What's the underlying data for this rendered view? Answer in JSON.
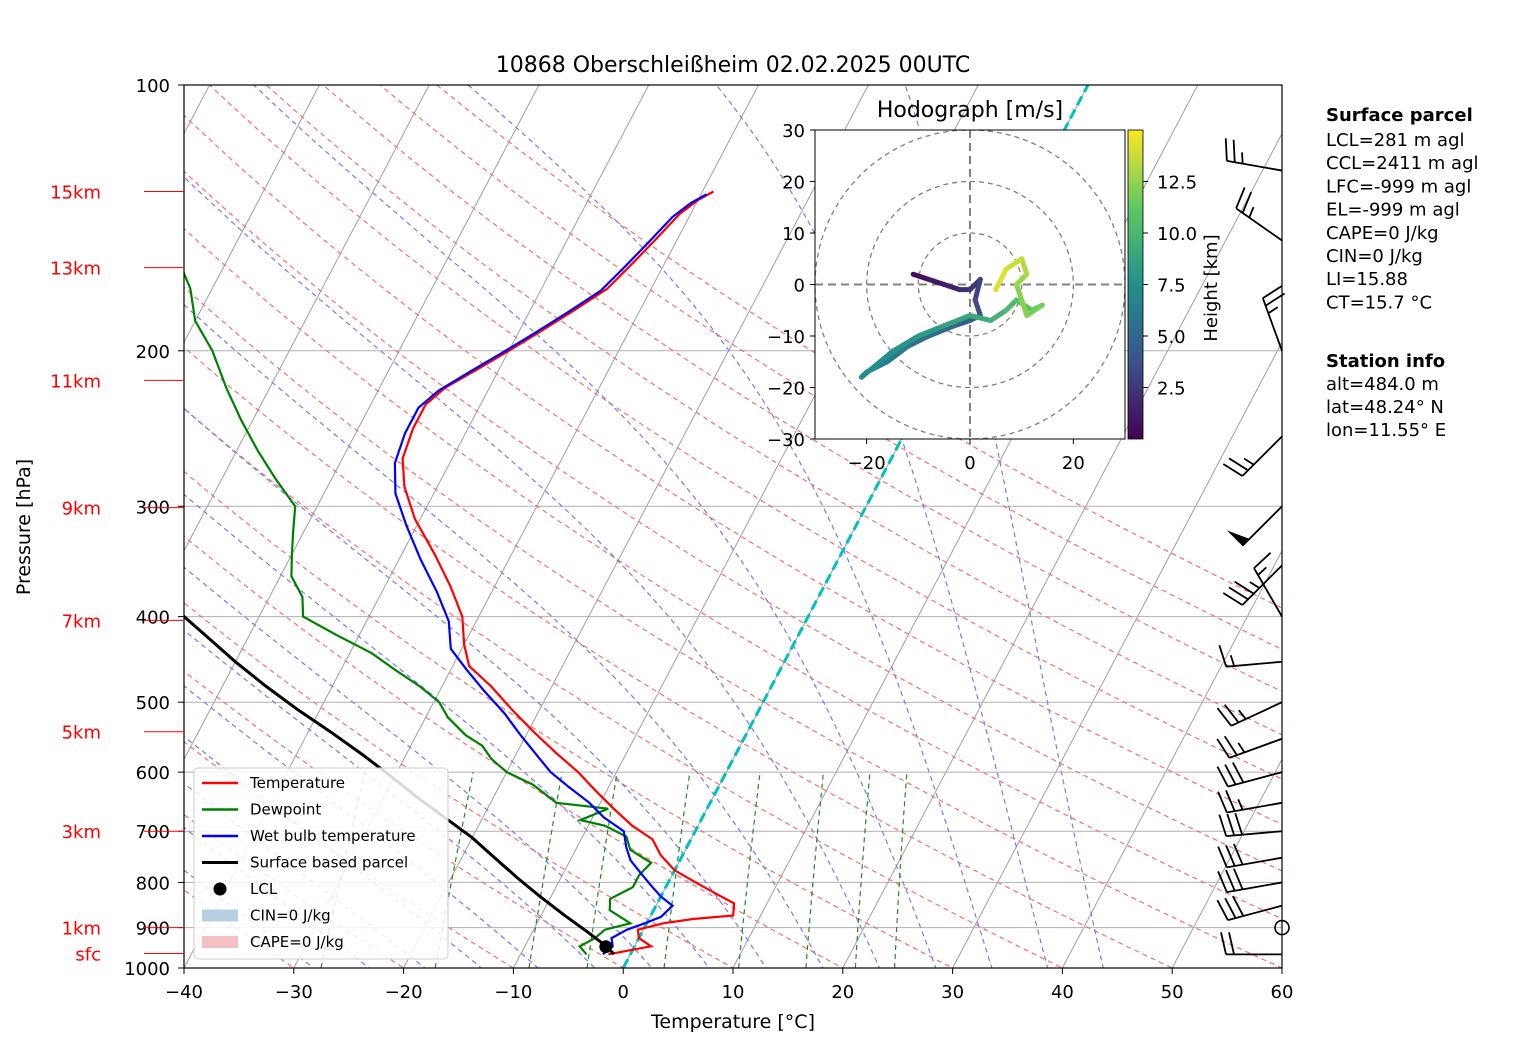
{
  "title": "10868 Oberschleißheim 02.02.2025 00UTC",
  "xlabel": "Temperature [°C]",
  "ylabel": "Pressure [hPa]",
  "chart_data": [
    {
      "type": "line",
      "subtype": "skew-T log-p diagram",
      "title": "10868 Oberschleißheim 02.02.2025 00UTC",
      "xlabel": "Temperature [°C]",
      "ylabel": "Pressure [hPa]",
      "xlim": [
        -40,
        60
      ],
      "ylim": [
        1000,
        100
      ],
      "y_scale": "log",
      "x_ticks": [
        "−40",
        "−30",
        "−20",
        "−10",
        "0",
        "10",
        "20",
        "30",
        "40",
        "50",
        "60"
      ],
      "y_ticks": [
        "100",
        "200",
        "300",
        "400",
        "500",
        "600",
        "700",
        "800",
        "900",
        "1000"
      ],
      "height_labels": [
        {
          "label": "15km",
          "p": 132
        },
        {
          "label": "13km",
          "p": 161
        },
        {
          "label": "11km",
          "p": 216
        },
        {
          "label": "9km",
          "p": 301
        },
        {
          "label": "7km",
          "p": 404
        },
        {
          "label": "5km",
          "p": 540
        },
        {
          "label": "3km",
          "p": 700
        },
        {
          "label": "1km",
          "p": 900
        },
        {
          "label": "sfc",
          "p": 963
        }
      ],
      "legend": {
        "position": "bottom-left",
        "entries": [
          "Temperature",
          "Dewpoint",
          "Wet bulb temperature",
          "Surface based parcel",
          "LCL",
          "CIN=0 J/kg",
          "CAPE=0 J/kg"
        ]
      },
      "series": [
        {
          "name": "Temperature",
          "color": "#ff0000",
          "points": [
            [
              -2,
              965
            ],
            [
              1.5,
              945
            ],
            [
              0,
              925
            ],
            [
              -0.5,
              905
            ],
            [
              1.5,
              890
            ],
            [
              4,
              880
            ],
            [
              7.5,
              872
            ],
            [
              7,
              845
            ],
            [
              5,
              825
            ],
            [
              2.5,
              800
            ],
            [
              0,
              775
            ],
            [
              -2,
              745
            ],
            [
              -3.5,
              715
            ],
            [
              -6,
              690
            ],
            [
              -8.5,
              660
            ],
            [
              -11,
              630
            ],
            [
              -13.5,
              600
            ],
            [
              -16.5,
              570
            ],
            [
              -19.5,
              540
            ],
            [
              -22.5,
              510
            ],
            [
              -25.5,
              480
            ],
            [
              -28.5,
              455
            ],
            [
              -30,
              430
            ],
            [
              -31.5,
              400
            ],
            [
              -34,
              370
            ],
            [
              -37,
              340
            ],
            [
              -40.5,
              310
            ],
            [
              -43,
              285
            ],
            [
              -44.5,
              265
            ],
            [
              -45,
              245
            ],
            [
              -45,
              230
            ],
            [
              -44,
              220
            ],
            [
              -42,
              210
            ],
            [
              -40,
              200
            ],
            [
              -38,
              190
            ],
            [
              -36,
              180
            ],
            [
              -34,
              170
            ],
            [
              -33,
              160
            ],
            [
              -32,
              150
            ],
            [
              -31,
              140
            ],
            [
              -30,
              135
            ],
            [
              -29,
              132
            ]
          ]
        },
        {
          "name": "Dewpoint",
          "color": "#008000",
          "points": [
            [
              -4,
              965
            ],
            [
              -5,
              945
            ],
            [
              -4,
              925
            ],
            [
              -3.5,
              905
            ],
            [
              -1.5,
              890
            ],
            [
              -4,
              860
            ],
            [
              -4.5,
              835
            ],
            [
              -3,
              810
            ],
            [
              -3,
              785
            ],
            [
              -2.5,
              760
            ],
            [
              -5,
              735
            ],
            [
              -6,
              710
            ],
            [
              -8.5,
              690
            ],
            [
              -11,
              680
            ],
            [
              -9,
              660
            ],
            [
              -14,
              650
            ],
            [
              -17,
              620
            ],
            [
              -20,
              600
            ],
            [
              -22,
              580
            ],
            [
              -23.5,
              560
            ],
            [
              -25.5,
              545
            ],
            [
              -28,
              520
            ],
            [
              -29.5,
              500
            ],
            [
              -32,
              480
            ],
            [
              -35,
              460
            ],
            [
              -38,
              440
            ],
            [
              -42,
              420
            ],
            [
              -46,
              400
            ],
            [
              -47,
              380
            ],
            [
              -49,
              360
            ],
            [
              -50,
              340
            ],
            [
              -51,
              320
            ],
            [
              -52,
              300
            ],
            [
              -55,
              280
            ],
            [
              -58,
              260
            ],
            [
              -61,
              240
            ],
            [
              -64,
              220
            ],
            [
              -67,
              200
            ],
            [
              -70,
              185
            ],
            [
              -72,
              170
            ],
            [
              -74,
              160
            ],
            [
              -76,
              150
            ],
            [
              -78,
              140
            ],
            [
              -79,
              135
            ],
            [
              -80,
              132
            ]
          ]
        },
        {
          "name": "Wet bulb temperature",
          "color": "#0000ff",
          "points": [
            [
              -2.5,
              965
            ],
            [
              -2,
              945
            ],
            [
              -2.5,
              925
            ],
            [
              -1.5,
              905
            ],
            [
              0,
              888
            ],
            [
              1,
              875
            ],
            [
              1.5,
              850
            ],
            [
              0,
              830
            ],
            [
              -1.5,
              805
            ],
            [
              -3,
              780
            ],
            [
              -4.5,
              755
            ],
            [
              -5.5,
              730
            ],
            [
              -6.5,
              700
            ],
            [
              -9,
              675
            ],
            [
              -11,
              650
            ],
            [
              -13.5,
              625
            ],
            [
              -16,
              600
            ],
            [
              -18,
              575
            ],
            [
              -20.5,
              545
            ],
            [
              -23,
              515
            ],
            [
              -26,
              485
            ],
            [
              -28.5,
              460
            ],
            [
              -31,
              435
            ],
            [
              -32.5,
              405
            ],
            [
              -35,
              375
            ],
            [
              -38,
              345
            ],
            [
              -41,
              315
            ],
            [
              -43.5,
              290
            ],
            [
              -45,
              268
            ],
            [
              -45.5,
              248
            ],
            [
              -45.5,
              232
            ],
            [
              -44.5,
              222
            ],
            [
              -42.5,
              211
            ],
            [
              -40.5,
              201
            ],
            [
              -38.5,
              191
            ],
            [
              -36.5,
              181
            ],
            [
              -34.5,
              171
            ],
            [
              -33.5,
              161
            ],
            [
              -32.5,
              151
            ],
            [
              -31.5,
              141
            ],
            [
              -30.5,
              136
            ],
            [
              -29.5,
              133
            ]
          ]
        },
        {
          "name": "Surface based parcel",
          "color": "#000000",
          "points": [
            [
              -1.5,
              965
            ],
            [
              -2.5,
              946
            ],
            [
              -5,
              910
            ],
            [
              -8,
              870
            ],
            [
              -11,
              830
            ],
            [
              -14,
              790
            ],
            [
              -17,
              750
            ],
            [
              -20,
              712
            ],
            [
              -23.5,
              675
            ],
            [
              -27,
              640
            ],
            [
              -30.5,
              605
            ],
            [
              -34,
              573
            ],
            [
              -38,
              540
            ],
            [
              -42,
              510
            ],
            [
              -46,
              480
            ],
            [
              -50,
              450
            ],
            [
              -54,
              420
            ],
            [
              -58,
              392
            ],
            [
              -62,
              366
            ],
            [
              -66,
              340
            ],
            [
              -70,
              315
            ],
            [
              -74,
              292
            ],
            [
              -78,
              270
            ]
          ]
        }
      ],
      "lcl": {
        "label": "LCL",
        "t": -2.6,
        "p": 946
      },
      "hodograph": {
        "title": "Hodograph [m/s]",
        "xlim": [
          -30,
          30
        ],
        "ylim": [
          -30,
          30
        ],
        "x_ticks": [
          "−20",
          "0",
          "20"
        ],
        "y_ticks": [
          "30",
          "20",
          "10",
          "0",
          "−10",
          "−20",
          "−30"
        ],
        "rings": [
          10,
          20,
          30
        ],
        "colorbar": {
          "label": "Height [km]",
          "ticks": [
            "2.5",
            "5.0",
            "7.5",
            "10.0",
            "12.5"
          ],
          "range": [
            0,
            15
          ]
        },
        "points": [
          [
            -11,
            2,
            0.3
          ],
          [
            -8,
            1,
            0.8
          ],
          [
            -5,
            0,
            1.3
          ],
          [
            -2,
            -1,
            1.8
          ],
          [
            0,
            -1,
            2.3
          ],
          [
            2,
            1,
            2.8
          ],
          [
            1,
            -3,
            3.3
          ],
          [
            2,
            -6,
            3.8
          ],
          [
            0,
            -7,
            4.3
          ],
          [
            -3,
            -8,
            4.8
          ],
          [
            -8,
            -10,
            5.3
          ],
          [
            -12,
            -12,
            5.8
          ],
          [
            -16,
            -15,
            6.3
          ],
          [
            -20,
            -17,
            6.8
          ],
          [
            -21,
            -18,
            7.2
          ],
          [
            -15,
            -13,
            7.6
          ],
          [
            -10,
            -10,
            8.0
          ],
          [
            -5,
            -8,
            8.5
          ],
          [
            0,
            -6,
            9.0
          ],
          [
            4,
            -7,
            9.5
          ],
          [
            7,
            -5,
            10.0
          ],
          [
            9,
            -3,
            10.5
          ],
          [
            12,
            -5,
            11.0
          ],
          [
            14,
            -4,
            11.5
          ],
          [
            11,
            -6,
            12.0
          ],
          [
            9,
            0,
            12.5
          ],
          [
            11,
            2,
            13.0
          ],
          [
            10,
            5,
            13.5
          ],
          [
            7,
            3,
            14.0
          ],
          [
            5,
            -1,
            14.5
          ]
        ]
      },
      "wind_barbs": [
        {
          "p": 965,
          "dir": 270,
          "speed": 20
        },
        {
          "p": 900,
          "dir": 0,
          "speed": 0
        },
        {
          "p": 850,
          "dir": 255,
          "speed": 30
        },
        {
          "p": 800,
          "dir": 260,
          "speed": 30
        },
        {
          "p": 750,
          "dir": 260,
          "speed": 30
        },
        {
          "p": 700,
          "dir": 265,
          "speed": 30
        },
        {
          "p": 650,
          "dir": 260,
          "speed": 25
        },
        {
          "p": 600,
          "dir": 255,
          "speed": 30
        },
        {
          "p": 550,
          "dir": 250,
          "speed": 25
        },
        {
          "p": 500,
          "dir": 245,
          "speed": 25
        },
        {
          "p": 450,
          "dir": 265,
          "speed": 15
        },
        {
          "p": 400,
          "dir": 330,
          "speed": 15
        },
        {
          "p": 350,
          "dir": 225,
          "speed": 35
        },
        {
          "p": 300,
          "dir": 225,
          "speed": 50
        },
        {
          "p": 250,
          "dir": 225,
          "speed": 25
        },
        {
          "p": 200,
          "dir": 340,
          "speed": 25
        },
        {
          "p": 150,
          "dir": 305,
          "speed": 25
        },
        {
          "p": 125,
          "dir": 280,
          "speed": 25
        }
      ]
    }
  ],
  "info": {
    "surface_title": "Surface parcel",
    "surface_lines": [
      "LCL=281 m agl",
      "CCL=2411 m agl",
      "LFC=-999 m agl",
      "EL=-999 m agl",
      "CAPE=0 J/kg",
      "CIN=0 J/kg",
      "LI=15.88",
      "CT=15.7 °C"
    ],
    "station_title": "Station info",
    "station_lines": [
      "alt=484.0 m",
      "lat=48.24° N",
      "lon=11.55° E"
    ]
  }
}
